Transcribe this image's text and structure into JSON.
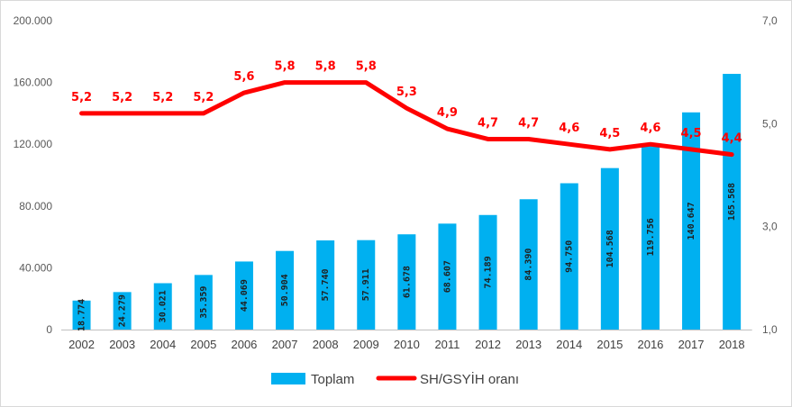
{
  "chart_data": {
    "type": "bar",
    "categories": [
      "2002",
      "2003",
      "2004",
      "2005",
      "2006",
      "2007",
      "2008",
      "2009",
      "2010",
      "2011",
      "2012",
      "2013",
      "2014",
      "2015",
      "2016",
      "2017",
      "2018"
    ],
    "series": [
      {
        "name": "Toplam",
        "type": "bar",
        "axis": "left",
        "color": "#00b0f0",
        "values": [
          18774,
          24279,
          30021,
          35359,
          44069,
          50904,
          57740,
          57911,
          61678,
          68607,
          74189,
          84390,
          94750,
          104568,
          119756,
          140647,
          165568
        ],
        "labels": [
          "18.774",
          "24.279",
          "30.021",
          "35.359",
          "44.069",
          "50.904",
          "57.740",
          "57.911",
          "61.678",
          "68.607",
          "74.189",
          "84.390",
          "94.750",
          "104.568",
          "119.756",
          "140.647",
          "165.568"
        ]
      },
      {
        "name": "SH/GSYİH oranı",
        "type": "line",
        "axis": "right",
        "color": "#ff0000",
        "values": [
          5.2,
          5.2,
          5.2,
          5.2,
          5.6,
          5.8,
          5.8,
          5.8,
          5.3,
          4.9,
          4.7,
          4.7,
          4.6,
          4.5,
          4.6,
          4.5,
          4.4
        ],
        "labels": [
          "5,2",
          "5,2",
          "5,2",
          "5,2",
          "5,6",
          "5,8",
          "5,8",
          "5,8",
          "5,3",
          "4,9",
          "4,7",
          "4,7",
          "4,6",
          "4,5",
          "4,6",
          "4,5",
          "4,4"
        ]
      }
    ],
    "y_left": {
      "min": 0,
      "max": 200000,
      "ticks": [
        "0",
        "40.000",
        "80.000",
        "120.000",
        "160.000",
        "200.000"
      ],
      "tick_values": [
        0,
        40000,
        80000,
        120000,
        160000,
        200000
      ]
    },
    "y_right": {
      "min": 1.0,
      "max": 7.0,
      "ticks": [
        "1,0",
        "3,0",
        "5,0",
        "7,0"
      ],
      "tick_values": [
        1,
        3,
        5,
        7
      ]
    },
    "grid": false,
    "legend": "bottom-center"
  }
}
